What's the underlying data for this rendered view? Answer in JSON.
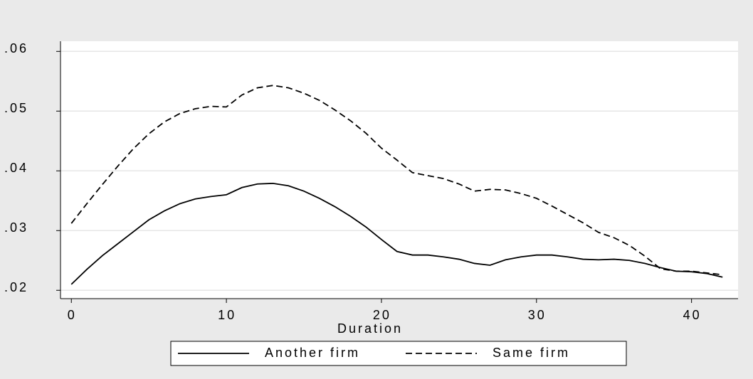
{
  "chart_data": {
    "type": "line",
    "x_label": "Duration",
    "x": [
      0,
      1,
      2,
      3,
      4,
      5,
      6,
      7,
      8,
      9,
      10,
      11,
      12,
      13,
      14,
      15,
      16,
      17,
      18,
      19,
      20,
      21,
      22,
      23,
      24,
      25,
      26,
      27,
      28,
      29,
      30,
      31,
      32,
      33,
      34,
      35,
      36,
      37,
      38,
      39,
      40,
      41,
      42
    ],
    "series": [
      {
        "name": "Another firm",
        "color": "#000000",
        "dash": "solid",
        "values": [
          0.021,
          0.0235,
          0.0258,
          0.0278,
          0.0298,
          0.0318,
          0.0333,
          0.0345,
          0.0353,
          0.0357,
          0.036,
          0.0372,
          0.0378,
          0.0379,
          0.0375,
          0.0366,
          0.0354,
          0.034,
          0.0324,
          0.0306,
          0.0285,
          0.0265,
          0.0259,
          0.0259,
          0.0256,
          0.0252,
          0.0245,
          0.0242,
          0.0251,
          0.0256,
          0.0259,
          0.0259,
          0.0256,
          0.0252,
          0.0251,
          0.0252,
          0.025,
          0.0245,
          0.0238,
          0.0232,
          0.0231,
          0.0228,
          0.0222
        ]
      },
      {
        "name": "Same firm",
        "color": "#000000",
        "dash": "dashed",
        "values": [
          0.0312,
          0.0345,
          0.0377,
          0.0408,
          0.0437,
          0.0462,
          0.0482,
          0.0496,
          0.0504,
          0.0508,
          0.0507,
          0.0527,
          0.0539,
          0.0543,
          0.0539,
          0.053,
          0.0518,
          0.0502,
          0.0484,
          0.0463,
          0.0438,
          0.0418,
          0.0397,
          0.0392,
          0.0387,
          0.0378,
          0.0366,
          0.0369,
          0.0368,
          0.0362,
          0.0354,
          0.0341,
          0.0327,
          0.0313,
          0.0297,
          0.0288,
          0.0275,
          0.0257,
          0.0236,
          0.0232,
          0.0232,
          0.0229,
          0.0226
        ]
      }
    ],
    "xlim": [
      -0.7,
      43
    ],
    "xticks": [
      0,
      10,
      20,
      30,
      40
    ],
    "ylim": [
      0.0186,
      0.0617
    ],
    "yticks": [
      {
        "value": 0.02,
        "label": ".02"
      },
      {
        "value": 0.03,
        "label": ".03"
      },
      {
        "value": 0.04,
        "label": ".04"
      },
      {
        "value": 0.05,
        "label": ".05"
      },
      {
        "value": 0.06,
        "label": ".06"
      }
    ],
    "grid": true
  }
}
